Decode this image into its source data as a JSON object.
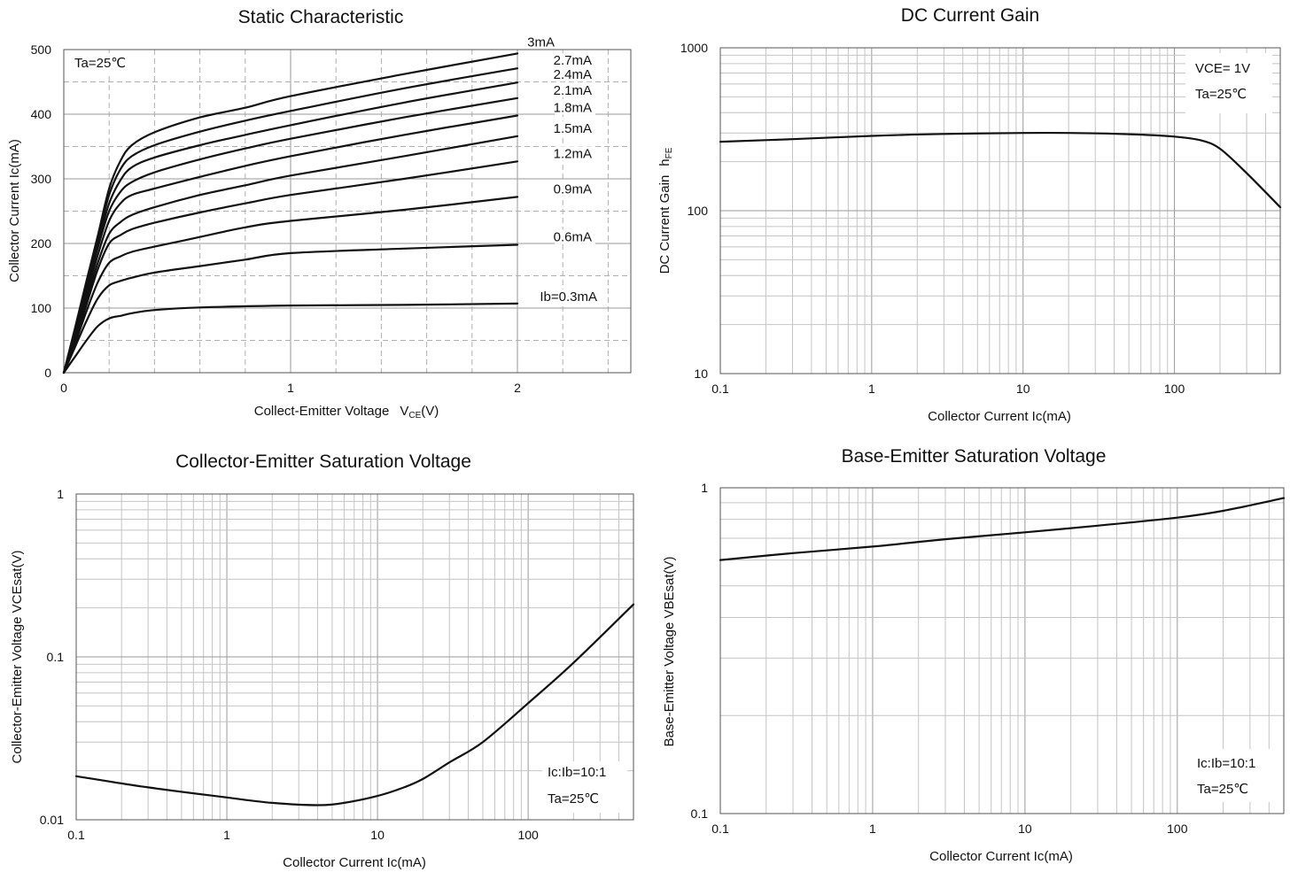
{
  "chart_data": [
    {
      "type": "line",
      "title": "Static Characteristic",
      "xlabel": "Collect-Emitter Voltage",
      "xlabel_symbol": "V",
      "xlabel_sub": "CE",
      "xlabel_unit": "(V)",
      "ylabel": "Collector  Current   Ic(mA)",
      "xlim": [
        0,
        2.5
      ],
      "ylim": [
        0,
        500
      ],
      "x_ticks": [
        "0",
        "1",
        "2"
      ],
      "y_ticks": [
        "0",
        "100",
        "200",
        "300",
        "400",
        "500"
      ],
      "grid": true,
      "annotations": [
        "Ta=25℃"
      ],
      "series": [
        {
          "name": "Ib=0.3mA",
          "x": [
            0,
            0.05,
            0.1,
            0.15,
            0.2,
            0.25,
            0.3,
            0.4,
            0.6,
            1.0,
            1.5,
            2.0
          ],
          "y": [
            0,
            25,
            50,
            72,
            84,
            88,
            92,
            97,
            101,
            104,
            105,
            107
          ]
        },
        {
          "name": "0.6mA",
          "x": [
            0,
            0.05,
            0.1,
            0.15,
            0.2,
            0.25,
            0.3,
            0.4,
            0.6,
            0.8,
            1.0,
            1.5,
            2.0
          ],
          "y": [
            0,
            40,
            80,
            115,
            135,
            142,
            147,
            155,
            165,
            175,
            185,
            192,
            198
          ]
        },
        {
          "name": "0.9mA",
          "x": [
            0,
            0.05,
            0.1,
            0.15,
            0.2,
            0.25,
            0.3,
            0.4,
            0.6,
            0.8,
            1.0,
            1.5,
            2.0
          ],
          "y": [
            0,
            45,
            95,
            140,
            170,
            180,
            187,
            195,
            210,
            225,
            235,
            252,
            272
          ]
        },
        {
          "name": "1.2mA",
          "x": [
            0,
            0.05,
            0.1,
            0.15,
            0.2,
            0.25,
            0.3,
            0.4,
            0.6,
            0.8,
            1.0,
            1.5,
            2.0
          ],
          "y": [
            0,
            50,
            105,
            160,
            200,
            213,
            222,
            232,
            248,
            262,
            275,
            300,
            327
          ]
        },
        {
          "name": "1.5mA",
          "x": [
            0,
            0.05,
            0.1,
            0.15,
            0.2,
            0.25,
            0.3,
            0.4,
            0.6,
            0.8,
            1.0,
            1.5,
            2.0
          ],
          "y": [
            0,
            55,
            112,
            170,
            215,
            233,
            244,
            256,
            275,
            290,
            305,
            335,
            366
          ]
        },
        {
          "name": "1.8mA",
          "x": [
            0,
            0.05,
            0.1,
            0.15,
            0.2,
            0.25,
            0.3,
            0.4,
            0.6,
            0.8,
            1.0,
            1.5,
            2.0
          ],
          "y": [
            0,
            60,
            120,
            182,
            235,
            262,
            275,
            285,
            303,
            320,
            335,
            368,
            398
          ]
        },
        {
          "name": "2.1mA",
          "x": [
            0,
            0.05,
            0.1,
            0.15,
            0.2,
            0.25,
            0.3,
            0.4,
            0.6,
            0.8,
            1.0,
            1.5,
            2.0
          ],
          "y": [
            0,
            63,
            128,
            193,
            250,
            280,
            295,
            310,
            330,
            347,
            362,
            395,
            425
          ]
        },
        {
          "name": "2.4mA",
          "x": [
            0,
            0.05,
            0.1,
            0.15,
            0.2,
            0.25,
            0.3,
            0.4,
            0.6,
            0.8,
            1.0,
            1.5,
            2.0
          ],
          "y": [
            0,
            65,
            133,
            200,
            262,
            298,
            318,
            333,
            352,
            368,
            383,
            418,
            449
          ]
        },
        {
          "name": "2.7mA",
          "x": [
            0,
            0.05,
            0.1,
            0.15,
            0.2,
            0.25,
            0.3,
            0.4,
            0.6,
            0.8,
            1.0,
            1.5,
            2.0
          ],
          "y": [
            0,
            67,
            137,
            206,
            275,
            315,
            335,
            352,
            373,
            390,
            405,
            440,
            471
          ]
        },
        {
          "name": "3mA",
          "x": [
            0,
            0.05,
            0.1,
            0.15,
            0.2,
            0.25,
            0.3,
            0.4,
            0.6,
            0.8,
            1.0,
            1.5,
            2.0
          ],
          "y": [
            0,
            70,
            142,
            212,
            285,
            328,
            352,
            372,
            395,
            410,
            428,
            462,
            494
          ]
        }
      ]
    },
    {
      "type": "line",
      "title": "DC Current Gain",
      "xlabel": "Collector Current   Ic(mA)",
      "ylabel": "DC Current Gain",
      "ylabel_symbol": "h",
      "ylabel_sub": "FE",
      "x_scale": "log",
      "y_scale": "log",
      "xlim": [
        0.1,
        500
      ],
      "ylim": [
        10,
        1000
      ],
      "x_ticks": [
        "0.1",
        "1",
        "10",
        "100"
      ],
      "y_ticks": [
        "10",
        "100",
        "1000"
      ],
      "grid": true,
      "annotations": [
        "VCE= 1V",
        "Ta=25℃"
      ],
      "series": [
        {
          "x": [
            0.1,
            0.3,
            1,
            3,
            10,
            20,
            50,
            100,
            150,
            200,
            300,
            500
          ],
          "y": [
            265,
            275,
            288,
            296,
            300,
            300,
            295,
            285,
            270,
            240,
            170,
            105
          ]
        }
      ]
    },
    {
      "type": "line",
      "title": "Collector-Emitter Saturation Voltage",
      "xlabel": "Collector Current   Ic(mA)",
      "ylabel": "Collector-Emitter Voltage   VCEsat(V)",
      "x_scale": "log",
      "y_scale": "log",
      "xlim": [
        0.1,
        500
      ],
      "ylim": [
        0.01,
        1
      ],
      "x_ticks": [
        "0.1",
        "1",
        "10",
        "100"
      ],
      "y_ticks": [
        "0.01",
        "0.1",
        "1"
      ],
      "grid": true,
      "annotations": [
        "Ic:Ib=10:1",
        "Ta=25℃"
      ],
      "series": [
        {
          "x": [
            0.1,
            0.3,
            1,
            2,
            4,
            6,
            10,
            15,
            20,
            30,
            50,
            100,
            200,
            500
          ],
          "y": [
            0.0185,
            0.0158,
            0.0137,
            0.0127,
            0.0123,
            0.0127,
            0.014,
            0.0158,
            0.0178,
            0.0225,
            0.03,
            0.052,
            0.092,
            0.21
          ]
        }
      ]
    },
    {
      "type": "line",
      "title": "Base-Emitter Saturation Voltage",
      "xlabel": "Collector Current   Ic(mA)",
      "ylabel": "Base-Emitter Voltage   VBEsat(V)",
      "x_scale": "log",
      "y_scale": "log",
      "xlim": [
        0.1,
        500
      ],
      "ylim": [
        0.1,
        1
      ],
      "x_ticks": [
        "0.1",
        "1",
        "10",
        "100"
      ],
      "y_ticks": [
        "0.1",
        "1"
      ],
      "grid": true,
      "annotations": [
        "Ic:Ib=10:1",
        "Ta=25℃"
      ],
      "series": [
        {
          "x": [
            0.1,
            0.3,
            1,
            3,
            10,
            30,
            100,
            200,
            500
          ],
          "y": [
            0.6,
            0.63,
            0.66,
            0.695,
            0.73,
            0.765,
            0.81,
            0.85,
            0.93
          ]
        }
      ]
    }
  ]
}
